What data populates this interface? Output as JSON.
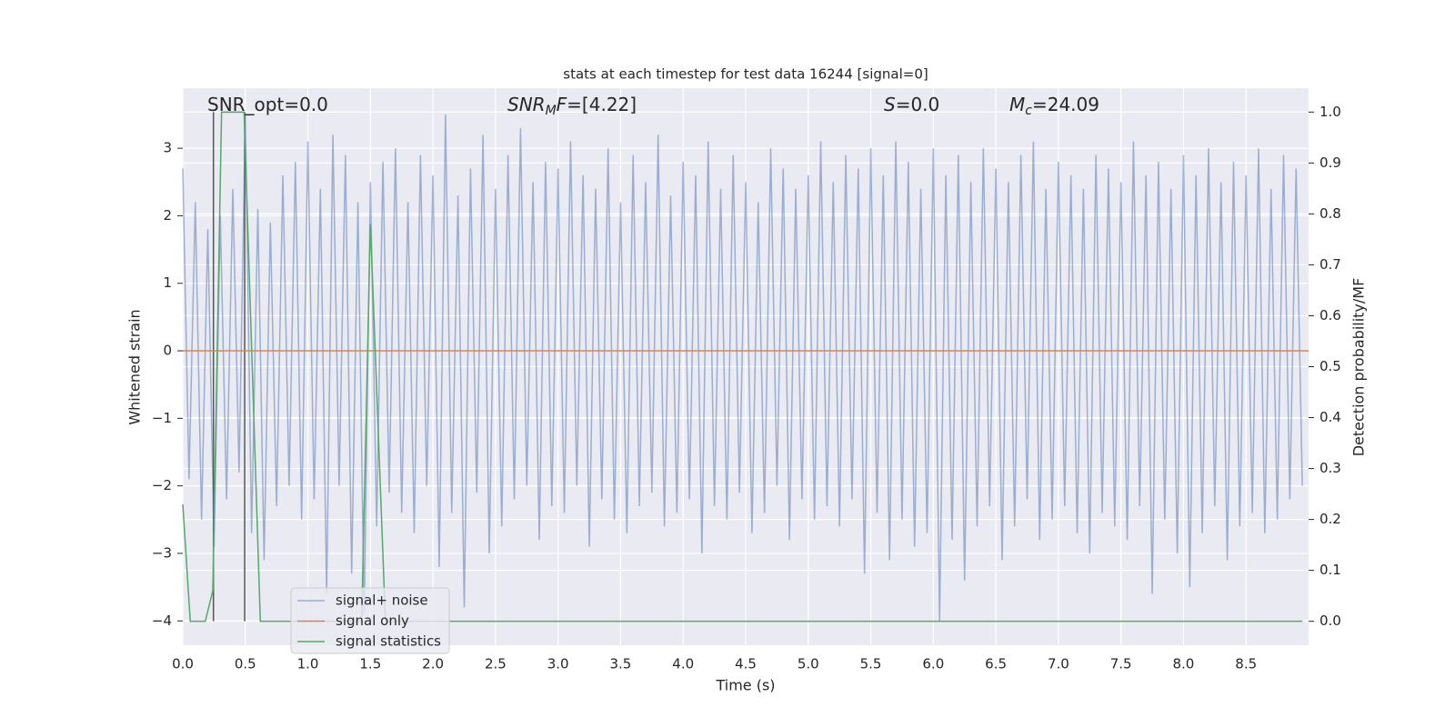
{
  "chart_data": {
    "type": "line",
    "title": "stats at each timestep for test data 16244 [signal=0]",
    "xlabel": "Time (s)",
    "ylabel": "Whitened strain",
    "y2label": "Detection probability/MF",
    "annotations": [
      [
        {
          "text": "SNR_opt=0.0"
        }
      ],
      [
        {
          "text": "SNR",
          "italic": true
        },
        {
          "text": "M",
          "italic": true,
          "sub": true
        },
        {
          "text": "F",
          "italic": true
        },
        {
          "text": "=[4.22]"
        }
      ],
      [
        {
          "text": "S",
          "italic": true
        },
        {
          "text": "=0.0"
        }
      ],
      [
        {
          "text": "M",
          "italic": true
        },
        {
          "text": "c",
          "italic": true,
          "sub": true
        },
        {
          "text": "=24.09"
        }
      ]
    ],
    "xlim": [
      0,
      9.0
    ],
    "ylim": [
      -4.36,
      3.89
    ],
    "y2lim": [
      -0.047,
      1.047
    ],
    "xticks": [
      {
        "value": 0,
        "label": "0.0"
      },
      {
        "value": 0.5,
        "label": "0.5"
      },
      {
        "value": 1,
        "label": "1.0"
      },
      {
        "value": 1.5,
        "label": "1.5"
      },
      {
        "value": 2,
        "label": "2.0"
      },
      {
        "value": 2.5,
        "label": "2.5"
      },
      {
        "value": 3,
        "label": "3.0"
      },
      {
        "value": 3.5,
        "label": "3.5"
      },
      {
        "value": 4,
        "label": "4.0"
      },
      {
        "value": 4.5,
        "label": "4.5"
      },
      {
        "value": 5,
        "label": "5.0"
      },
      {
        "value": 5.5,
        "label": "5.5"
      },
      {
        "value": 6,
        "label": "6.0"
      },
      {
        "value": 6.5,
        "label": "6.5"
      },
      {
        "value": 7,
        "label": "7.0"
      },
      {
        "value": 7.5,
        "label": "7.5"
      },
      {
        "value": 8,
        "label": "8.0"
      },
      {
        "value": 8.5,
        "label": "8.5"
      }
    ],
    "yticks": [
      {
        "value": -4,
        "label": "−4"
      },
      {
        "value": -3,
        "label": "−3"
      },
      {
        "value": -2,
        "label": "−2"
      },
      {
        "value": -1,
        "label": "−1"
      },
      0,
      1,
      2,
      3
    ],
    "y2ticks": [
      {
        "value": 0,
        "label": "0.0"
      },
      {
        "value": 0.1,
        "label": "0.1"
      },
      {
        "value": 0.2,
        "label": "0.2"
      },
      {
        "value": 0.3,
        "label": "0.3"
      },
      {
        "value": 0.4,
        "label": "0.4"
      },
      {
        "value": 0.5,
        "label": "0.5"
      },
      {
        "value": 0.6,
        "label": "0.6"
      },
      {
        "value": 0.7,
        "label": "0.7"
      },
      {
        "value": 0.8,
        "label": "0.8"
      },
      {
        "value": 0.9,
        "label": "0.9"
      },
      {
        "value": 1,
        "label": "1.0"
      }
    ],
    "grid": true,
    "legend": "lower left",
    "vlines": {
      "x": [
        0.245,
        0.495
      ],
      "ymin": 0,
      "ymax": 1,
      "color": "#555555"
    },
    "series": [
      {
        "name": "signal+ noise",
        "color": "#4c72b0",
        "opacity": 0.5,
        "x": [
          0,
          0.05,
          0.1,
          0.15,
          0.2,
          0.25,
          0.3,
          0.35,
          0.4,
          0.45,
          0.5,
          0.55,
          0.6,
          0.65,
          0.7,
          0.75,
          0.8,
          0.85,
          0.9,
          0.95,
          1,
          1.05,
          1.1,
          1.15,
          1.2,
          1.25,
          1.3,
          1.35,
          1.4,
          1.45,
          1.5,
          1.55,
          1.6,
          1.65,
          1.7,
          1.75,
          1.8,
          1.85,
          1.9,
          1.95,
          2,
          2.05,
          2.1,
          2.15,
          2.2,
          2.25,
          2.3,
          2.35,
          2.4,
          2.45,
          2.5,
          2.55,
          2.6,
          2.65,
          2.7,
          2.75,
          2.8,
          2.85,
          2.9,
          2.95,
          3,
          3.05,
          3.1,
          3.15,
          3.2,
          3.25,
          3.3,
          3.35,
          3.4,
          3.45,
          3.5,
          3.55,
          3.6,
          3.65,
          3.7,
          3.75,
          3.8,
          3.85,
          3.9,
          3.95,
          4,
          4.05,
          4.1,
          4.15,
          4.2,
          4.25,
          4.3,
          4.35,
          4.4,
          4.45,
          4.5,
          4.55,
          4.6,
          4.65,
          4.7,
          4.75,
          4.8,
          4.85,
          4.9,
          4.95,
          5,
          5.05,
          5.1,
          5.15,
          5.2,
          5.25,
          5.3,
          5.35,
          5.4,
          5.45,
          5.5,
          5.55,
          5.6,
          5.65,
          5.7,
          5.75,
          5.8,
          5.85,
          5.9,
          5.95,
          6,
          6.05,
          6.1,
          6.15,
          6.2,
          6.25,
          6.3,
          6.35,
          6.4,
          6.45,
          6.5,
          6.55,
          6.6,
          6.65,
          6.7,
          6.75,
          6.8,
          6.85,
          6.9,
          6.95,
          7,
          7.05,
          7.1,
          7.15,
          7.2,
          7.25,
          7.3,
          7.35,
          7.4,
          7.45,
          7.5,
          7.55,
          7.6,
          7.65,
          7.7,
          7.75,
          7.8,
          7.85,
          7.9,
          7.95,
          8,
          8.05,
          8.1,
          8.15,
          8.2,
          8.25,
          8.3,
          8.35,
          8.4,
          8.45,
          8.5,
          8.55,
          8.6,
          8.65,
          8.7,
          8.75,
          8.8,
          8.85,
          8.9,
          8.95
        ],
        "values": [
          2.7,
          -1.9,
          2.2,
          -2.5,
          1.8,
          -2.9,
          2.0,
          -2.2,
          2.4,
          -1.8,
          3.5,
          -2.7,
          2.1,
          -3.1,
          1.9,
          -2.3,
          2.6,
          -2.0,
          2.8,
          -2.5,
          3.1,
          -2.2,
          2.4,
          -3.6,
          3.2,
          -2.0,
          2.9,
          -3.3,
          2.2,
          -3.9,
          2.5,
          -2.6,
          2.8,
          -2.1,
          3.0,
          -2.4,
          2.2,
          -2.7,
          2.9,
          -2.0,
          2.6,
          -3.2,
          3.5,
          -2.4,
          2.3,
          -3.8,
          2.7,
          -2.1,
          3.2,
          -3.0,
          2.4,
          -2.6,
          2.9,
          -2.2,
          3.3,
          -2.0,
          2.5,
          -2.8,
          2.8,
          -2.3,
          2.7,
          -2.4,
          3.1,
          -2.0,
          2.6,
          -2.9,
          2.4,
          -2.2,
          3.0,
          -2.5,
          2.2,
          -2.7,
          2.9,
          -2.3,
          2.5,
          -2.1,
          3.2,
          -2.6,
          2.3,
          -2.4,
          2.8,
          -2.2,
          2.6,
          -3.0,
          3.1,
          -2.3,
          2.4,
          -2.5,
          2.9,
          -2.1,
          2.5,
          -2.7,
          2.2,
          -2.4,
          3.0,
          -2.0,
          2.7,
          -2.8,
          2.4,
          -2.2,
          2.6,
          -2.5,
          3.1,
          -2.3,
          2.5,
          -2.6,
          2.9,
          -2.2,
          2.7,
          -3.3,
          3.0,
          -2.4,
          2.6,
          -3.1,
          3.1,
          -2.5,
          2.8,
          -2.9,
          2.4,
          -2.7,
          3.0,
          -4.0,
          2.6,
          -2.8,
          2.9,
          -3.4,
          2.5,
          -2.6,
          3.0,
          -2.3,
          2.7,
          -3.1,
          2.5,
          -2.6,
          2.9,
          -2.2,
          3.1,
          -2.8,
          2.4,
          -2.5,
          2.8,
          -2.3,
          2.6,
          -2.7,
          2.4,
          -3.0,
          2.9,
          -2.4,
          2.7,
          -2.6,
          2.5,
          -2.8,
          3.1,
          -2.3,
          2.6,
          -3.6,
          2.8,
          -2.5,
          2.4,
          -3.0,
          2.9,
          -3.5,
          2.6,
          -2.7,
          3.0,
          -2.3,
          2.5,
          -3.1,
          2.8,
          -2.6,
          2.6,
          -2.4,
          3.0,
          -2.7,
          2.4,
          -2.5,
          2.9,
          -2.2,
          2.7,
          -2.0
        ]
      },
      {
        "name": "signal only",
        "color": "#dd8452",
        "x": [
          0,
          9.0
        ],
        "values": [
          0,
          0
        ]
      },
      {
        "name": "signal statistics",
        "color": "#55a868",
        "axis": "y2",
        "x": [
          0,
          0.06,
          0.18,
          0.24,
          0.31,
          0.49,
          0.62,
          1.43,
          1.5,
          1.62,
          8.95
        ],
        "values": [
          0.23,
          0,
          0,
          0.06,
          1,
          1,
          0,
          0,
          0.78,
          0,
          0
        ]
      }
    ]
  }
}
